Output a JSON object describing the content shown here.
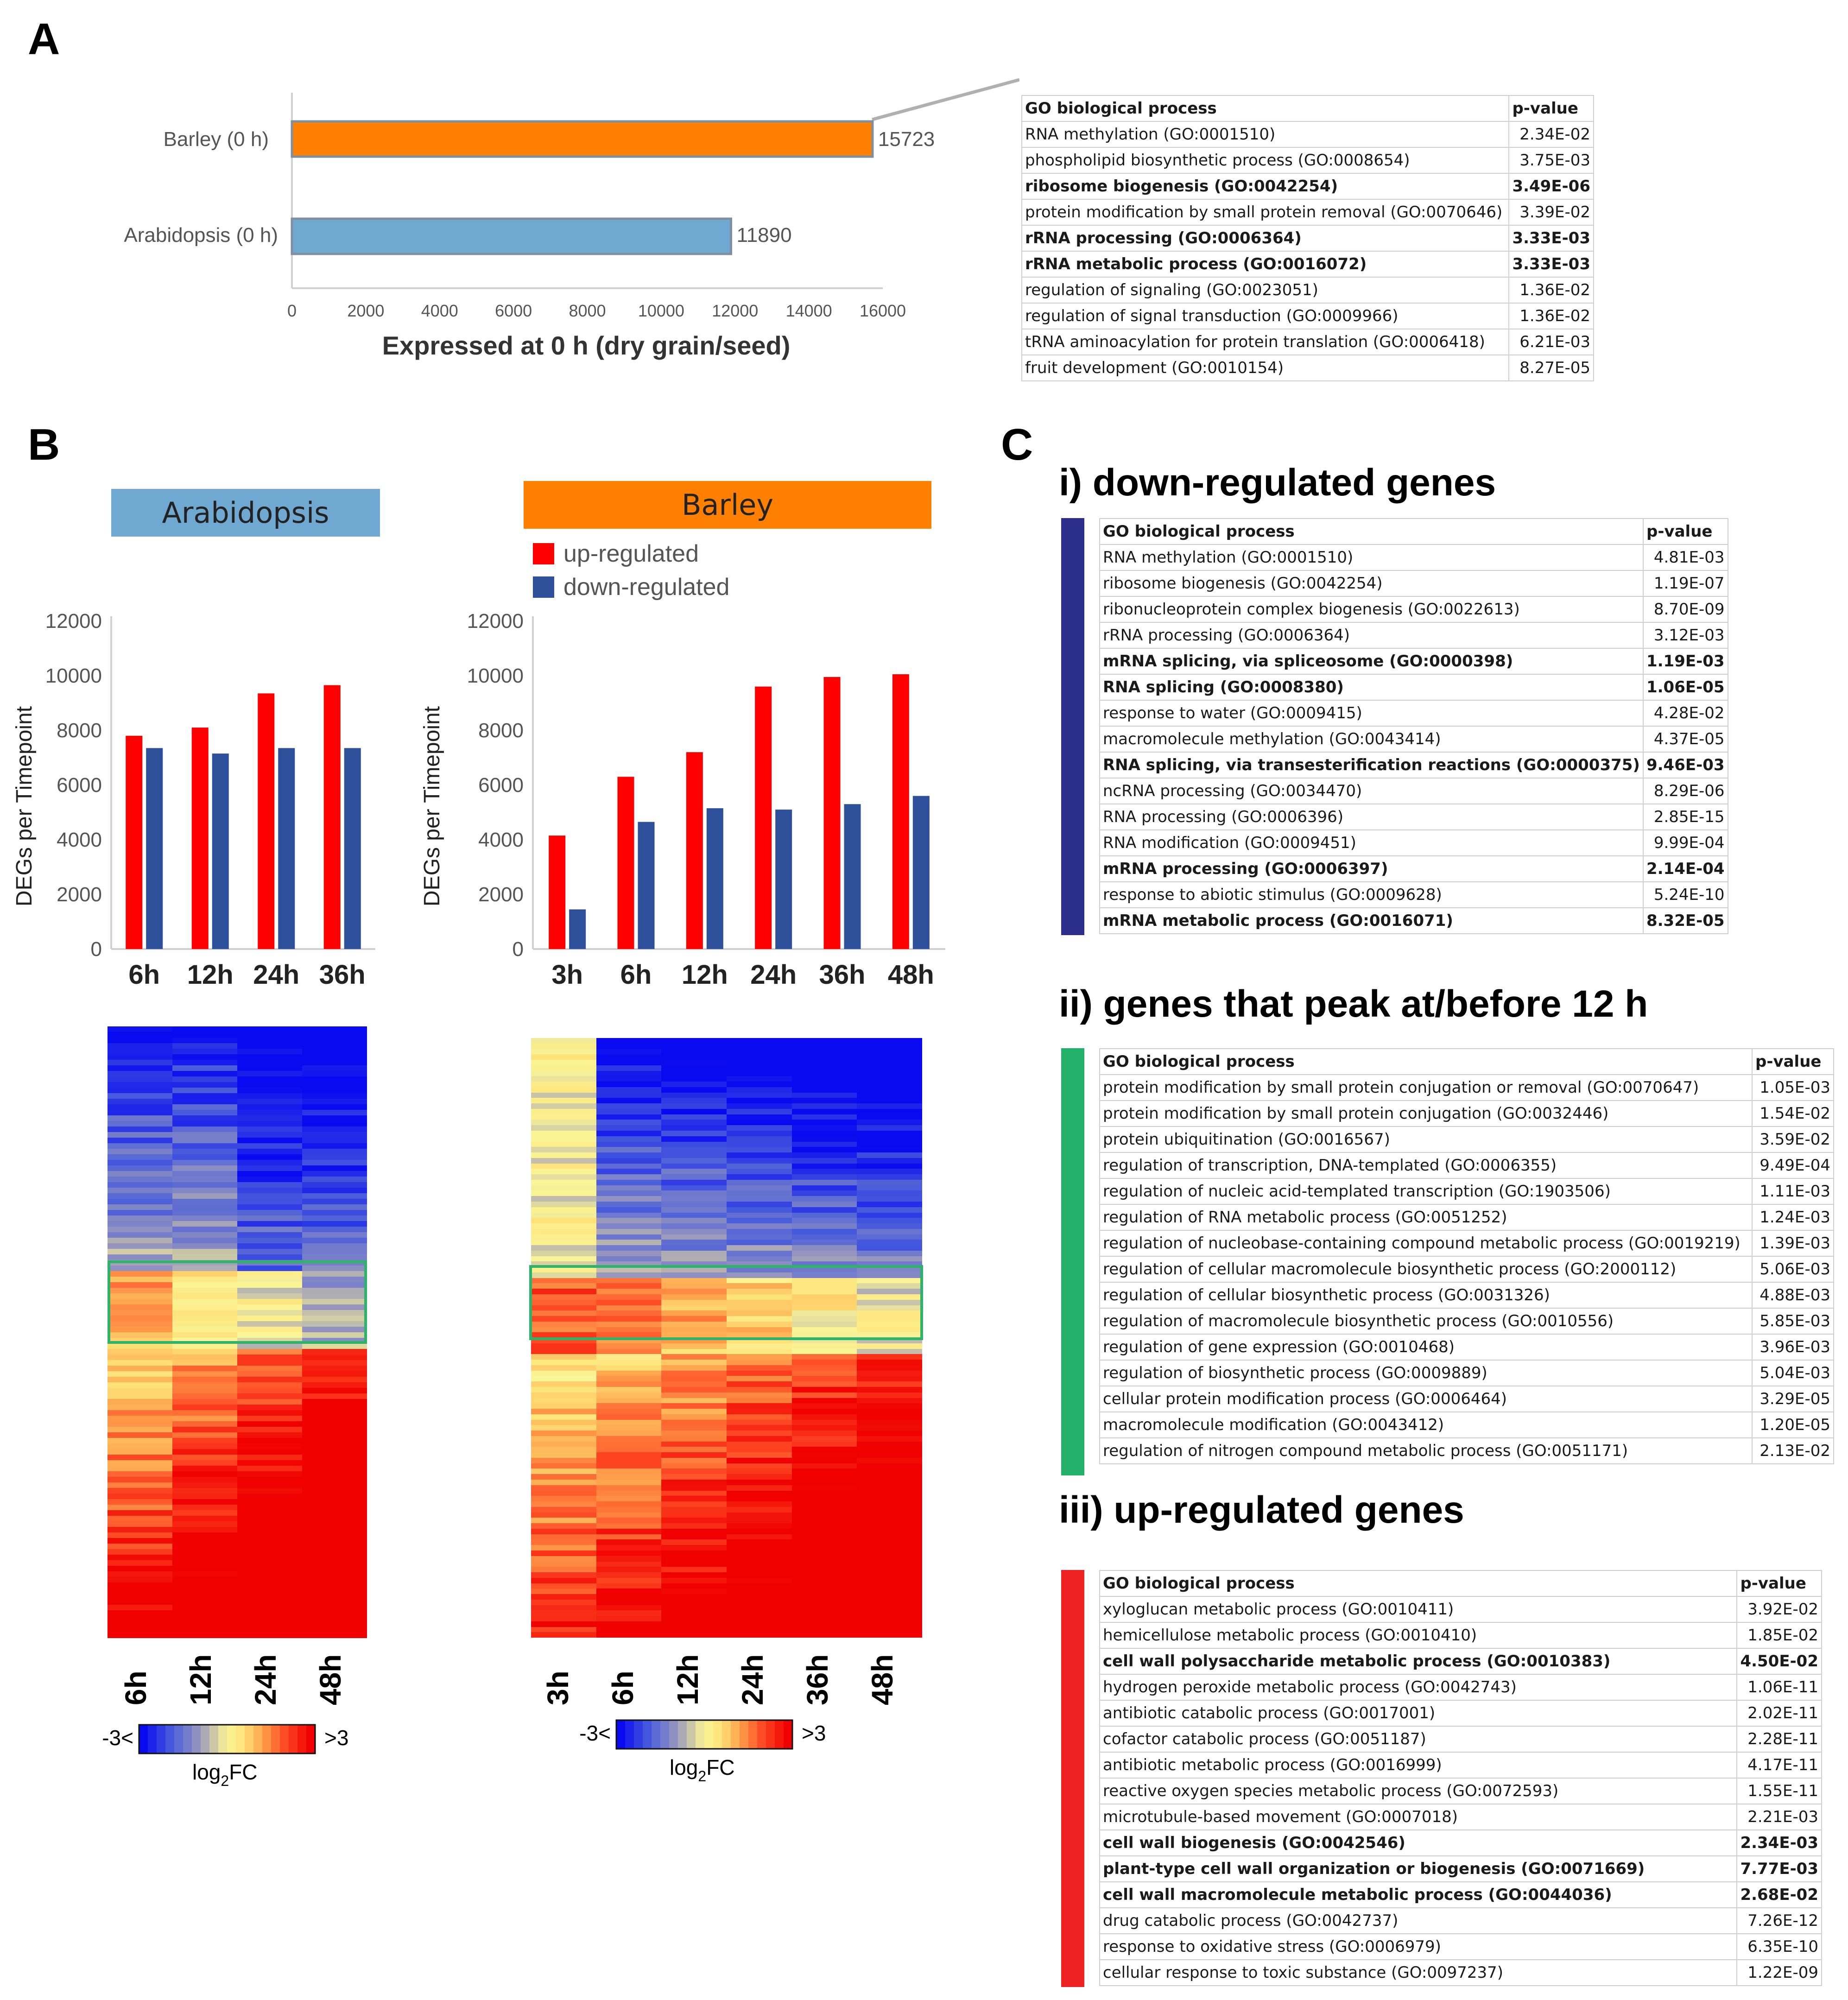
{
  "panels": {
    "a": "A",
    "b": "B",
    "c": "C"
  },
  "colors": {
    "barley": "#ff8000",
    "arabidopsis": "#6fa8d1",
    "up": "#ff0000",
    "down": "#2e4f9a",
    "section_i": "#2b2e8a",
    "section_ii": "#22b06a",
    "section_iii": "#ee2222",
    "box": "#2fb36a"
  },
  "panelA": {
    "chart_data": {
      "type": "bar",
      "orientation": "horizontal",
      "categories": [
        "Barley (0 h)",
        "Arabidopsis (0 h)"
      ],
      "values": [
        15723,
        11890
      ],
      "value_labels": [
        "15723",
        "11890"
      ],
      "xlabel": "Expressed at 0 h (dry grain/seed)",
      "xlim": [
        0,
        16000
      ],
      "xticks": [
        0,
        2000,
        4000,
        6000,
        8000,
        10000,
        12000,
        14000,
        16000
      ]
    },
    "table": {
      "header": [
        "GO biological process",
        "p-value"
      ],
      "rows": [
        {
          "term": "RNA methylation (GO:0001510)",
          "p": "2.34E-02",
          "bold": false
        },
        {
          "term": "phospholipid biosynthetic process (GO:0008654)",
          "p": "3.75E-03",
          "bold": false
        },
        {
          "term": "ribosome biogenesis (GO:0042254)",
          "p": "3.49E-06",
          "bold": true
        },
        {
          "term": "protein modification by small protein removal (GO:0070646)",
          "p": "3.39E-02",
          "bold": false
        },
        {
          "term": "rRNA processing (GO:0006364)",
          "p": "3.33E-03",
          "bold": true
        },
        {
          "term": "rRNA metabolic process (GO:0016072)",
          "p": "3.33E-03",
          "bold": true
        },
        {
          "term": "regulation of signaling (GO:0023051)",
          "p": "1.36E-02",
          "bold": false
        },
        {
          "term": "regulation of signal transduction (GO:0009966)",
          "p": "1.36E-02",
          "bold": false
        },
        {
          "term": "tRNA aminoacylation for protein translation (GO:0006418)",
          "p": "6.21E-03",
          "bold": false
        },
        {
          "term": "fruit development (GO:0010154)",
          "p": "8.27E-05",
          "bold": false
        }
      ]
    }
  },
  "panelB": {
    "arabidopsis_header": "Arabidopsis",
    "barley_header": "Barley",
    "legend": {
      "up": "up-regulated",
      "down": "down-regulated"
    },
    "ylabel": "DEGs per Timepoint",
    "chart_data": [
      {
        "type": "bar",
        "title": "Arabidopsis",
        "categories": [
          "6h",
          "12h",
          "24h",
          "36h"
        ],
        "series": [
          {
            "name": "up-regulated",
            "values": [
              7800,
              8100,
              9350,
              9650
            ]
          },
          {
            "name": "down-regulated",
            "values": [
              7350,
              7150,
              7350,
              7350
            ]
          }
        ],
        "ylabel": "DEGs per Timepoint",
        "ylim": [
          0,
          12000
        ],
        "yticks": [
          0,
          2000,
          4000,
          6000,
          8000,
          10000,
          12000
        ]
      },
      {
        "type": "bar",
        "title": "Barley",
        "categories": [
          "3h",
          "6h",
          "12h",
          "24h",
          "36h",
          "48h"
        ],
        "series": [
          {
            "name": "up-regulated",
            "values": [
              4150,
              6300,
              7200,
              9600,
              9950,
              10050
            ]
          },
          {
            "name": "down-regulated",
            "values": [
              1450,
              4650,
              5150,
              5100,
              5300,
              5600
            ]
          }
        ],
        "ylabel": "DEGs per Timepoint",
        "ylim": [
          0,
          12000
        ],
        "yticks": [
          0,
          2000,
          4000,
          6000,
          8000,
          10000,
          12000
        ]
      }
    ],
    "heatmap_arabidopsis_labels": [
      "6h",
      "12h",
      "24h",
      "48h"
    ],
    "heatmap_barley_labels": [
      "3h",
      "6h",
      "12h",
      "24h",
      "36h",
      "48h"
    ],
    "colorscale": {
      "low": "-3<",
      "high": ">3",
      "label_main": "log",
      "label_sub": "2",
      "label_tail": "FC"
    }
  },
  "panelC": {
    "i": {
      "title": "i) down-regulated genes",
      "header": [
        "GO biological process",
        "p-value"
      ],
      "rows": [
        {
          "term": "RNA methylation (GO:0001510)",
          "p": "4.81E-03",
          "bold": false
        },
        {
          "term": "ribosome biogenesis (GO:0042254)",
          "p": "1.19E-07",
          "bold": false
        },
        {
          "term": "ribonucleoprotein complex biogenesis (GO:0022613)",
          "p": "8.70E-09",
          "bold": false
        },
        {
          "term": "rRNA processing (GO:0006364)",
          "p": "3.12E-03",
          "bold": false
        },
        {
          "term": "mRNA splicing, via spliceosome (GO:0000398)",
          "p": "1.19E-03",
          "bold": true
        },
        {
          "term": "RNA splicing (GO:0008380)",
          "p": "1.06E-05",
          "bold": true
        },
        {
          "term": "response to water (GO:0009415)",
          "p": "4.28E-02",
          "bold": false
        },
        {
          "term": "macromolecule methylation (GO:0043414)",
          "p": "4.37E-05",
          "bold": false
        },
        {
          "term": "RNA splicing, via transesterification reactions (GO:0000375)",
          "p": "9.46E-03",
          "bold": true
        },
        {
          "term": "ncRNA processing (GO:0034470)",
          "p": "8.29E-06",
          "bold": false
        },
        {
          "term": "RNA processing (GO:0006396)",
          "p": "2.85E-15",
          "bold": false
        },
        {
          "term": "RNA modification (GO:0009451)",
          "p": "9.99E-04",
          "bold": false
        },
        {
          "term": "mRNA processing (GO:0006397)",
          "p": "2.14E-04",
          "bold": true
        },
        {
          "term": "response to abiotic stimulus (GO:0009628)",
          "p": "5.24E-10",
          "bold": false
        },
        {
          "term": "mRNA metabolic process (GO:0016071)",
          "p": "8.32E-05",
          "bold": true
        }
      ]
    },
    "ii": {
      "title": "ii) genes that peak at/before 12 h",
      "header": [
        "GO biological process",
        "p-value"
      ],
      "rows": [
        {
          "term": "protein modification by small protein conjugation or removal (GO:0070647)",
          "p": "1.05E-03",
          "bold": false
        },
        {
          "term": "protein modification by small protein conjugation (GO:0032446)",
          "p": "1.54E-02",
          "bold": false
        },
        {
          "term": "protein ubiquitination (GO:0016567)",
          "p": "3.59E-02",
          "bold": false
        },
        {
          "term": "regulation of transcription, DNA-templated (GO:0006355)",
          "p": "9.49E-04",
          "bold": false
        },
        {
          "term": "regulation of nucleic acid-templated transcription (GO:1903506)",
          "p": "1.11E-03",
          "bold": false
        },
        {
          "term": "regulation of RNA metabolic process (GO:0051252)",
          "p": "1.24E-03",
          "bold": false
        },
        {
          "term": "regulation of nucleobase-containing compound metabolic process (GO:0019219)",
          "p": "1.39E-03",
          "bold": false
        },
        {
          "term": "regulation of cellular macromolecule biosynthetic process (GO:2000112)",
          "p": "5.06E-03",
          "bold": false
        },
        {
          "term": "regulation of cellular biosynthetic process (GO:0031326)",
          "p": "4.88E-03",
          "bold": false
        },
        {
          "term": "regulation of macromolecule biosynthetic process (GO:0010556)",
          "p": "5.85E-03",
          "bold": false
        },
        {
          "term": "regulation of gene expression (GO:0010468)",
          "p": "3.96E-03",
          "bold": false
        },
        {
          "term": "regulation of biosynthetic process (GO:0009889)",
          "p": "5.04E-03",
          "bold": false
        },
        {
          "term": "cellular protein modification process (GO:0006464)",
          "p": "3.29E-05",
          "bold": false
        },
        {
          "term": "macromolecule modification (GO:0043412)",
          "p": "1.20E-05",
          "bold": false
        },
        {
          "term": "regulation of nitrogen compound metabolic process (GO:0051171)",
          "p": "2.13E-02",
          "bold": false
        }
      ]
    },
    "iii": {
      "title": "iii) up-regulated genes",
      "header": [
        "GO biological process",
        "p-value"
      ],
      "rows": [
        {
          "term": "xyloglucan metabolic process (GO:0010411)",
          "p": "3.92E-02",
          "bold": false
        },
        {
          "term": "hemicellulose metabolic process (GO:0010410)",
          "p": "1.85E-02",
          "bold": false
        },
        {
          "term": "cell wall polysaccharide metabolic process (GO:0010383)",
          "p": "4.50E-02",
          "bold": true
        },
        {
          "term": "hydrogen peroxide metabolic process (GO:0042743)",
          "p": "1.06E-11",
          "bold": false
        },
        {
          "term": "antibiotic catabolic process (GO:0017001)",
          "p": "2.02E-11",
          "bold": false
        },
        {
          "term": "cofactor catabolic process (GO:0051187)",
          "p": "2.28E-11",
          "bold": false
        },
        {
          "term": "antibiotic metabolic process (GO:0016999)",
          "p": "4.17E-11",
          "bold": false
        },
        {
          "term": "reactive oxygen species metabolic process (GO:0072593)",
          "p": "1.55E-11",
          "bold": false
        },
        {
          "term": "microtubule-based movement (GO:0007018)",
          "p": "2.21E-03",
          "bold": false
        },
        {
          "term": "cell wall biogenesis (GO:0042546)",
          "p": "2.34E-03",
          "bold": true
        },
        {
          "term": "plant-type cell wall organization or biogenesis (GO:0071669)",
          "p": "7.77E-03",
          "bold": true
        },
        {
          "term": "cell wall macromolecule metabolic process (GO:0044036)",
          "p": "2.68E-02",
          "bold": true
        },
        {
          "term": "drug catabolic process (GO:0042737)",
          "p": "7.26E-12",
          "bold": false
        },
        {
          "term": "response to oxidative stress (GO:0006979)",
          "p": "6.35E-10",
          "bold": false
        },
        {
          "term": "cellular response to toxic substance (GO:0097237)",
          "p": "1.22E-09",
          "bold": false
        }
      ]
    }
  }
}
